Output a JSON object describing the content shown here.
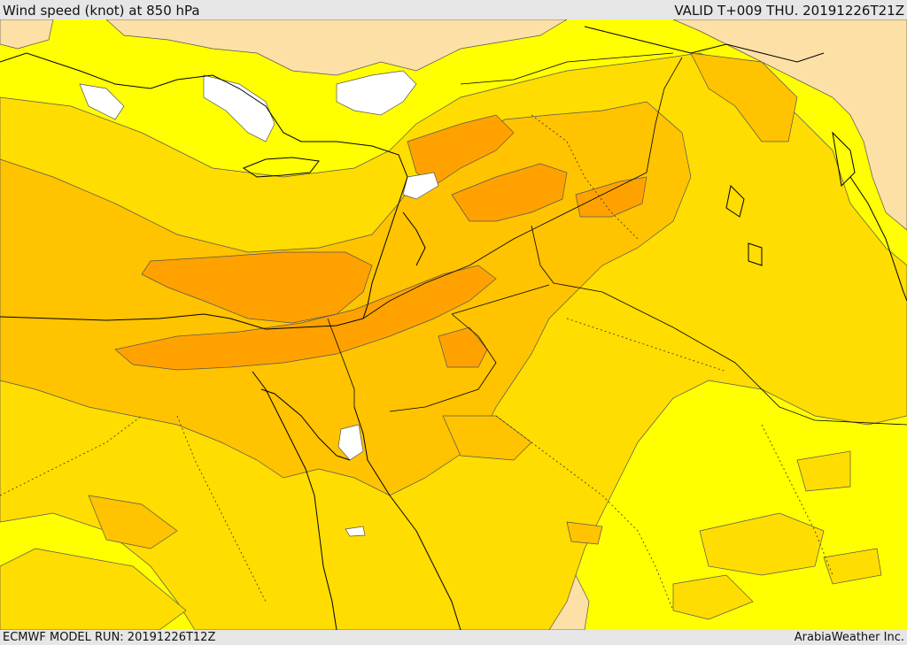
{
  "header": {
    "title": "Wind speed (knot) at 850 hPa",
    "valid": "VALID T+009 THU. 20191226T21Z"
  },
  "footer": {
    "model_run": "ECMWF MODEL RUN: 20191226T12Z",
    "credit": "ArabiaWeather Inc."
  },
  "colors": {
    "calm_white": "#ffffff",
    "very_low_tan": "#fde0a6",
    "low_yellow": "#ffff00",
    "moderate_gold": "#ffdd00",
    "fresh_amber": "#ffc300",
    "strong_orange": "#ffa200",
    "coast_line": "#000000",
    "contour_line": "#555555"
  }
}
